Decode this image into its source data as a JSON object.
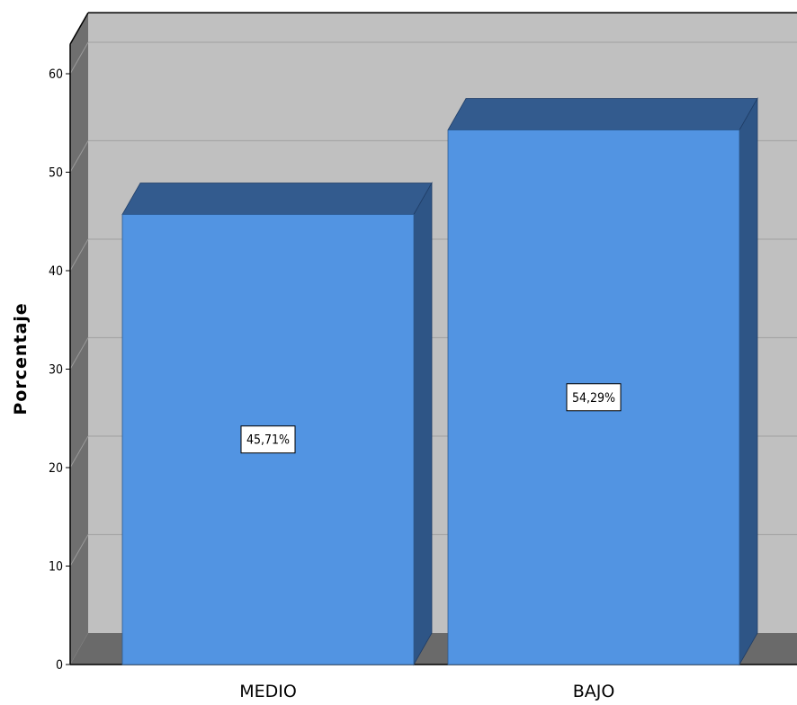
{
  "chart_data": {
    "type": "bar",
    "categories": [
      "MEDIO",
      "BAJO"
    ],
    "values": [
      45.71,
      54.29
    ],
    "data_labels": [
      "45,71%",
      "54,29%"
    ],
    "ylabel": "Porcentaje",
    "xlabel": "",
    "ylim": [
      0,
      63
    ],
    "yticks": [
      "0",
      "10",
      "20",
      "30",
      "40",
      "50",
      "60"
    ],
    "grid": true,
    "style": "3d",
    "colors": {
      "bar_front": "#5294e2",
      "bar_side": "#2e5586",
      "bar_top": "#335b8e",
      "wall": "#c0c0c0",
      "side_wall": "#6f6f6f",
      "floor": "#6a6a6a"
    }
  }
}
